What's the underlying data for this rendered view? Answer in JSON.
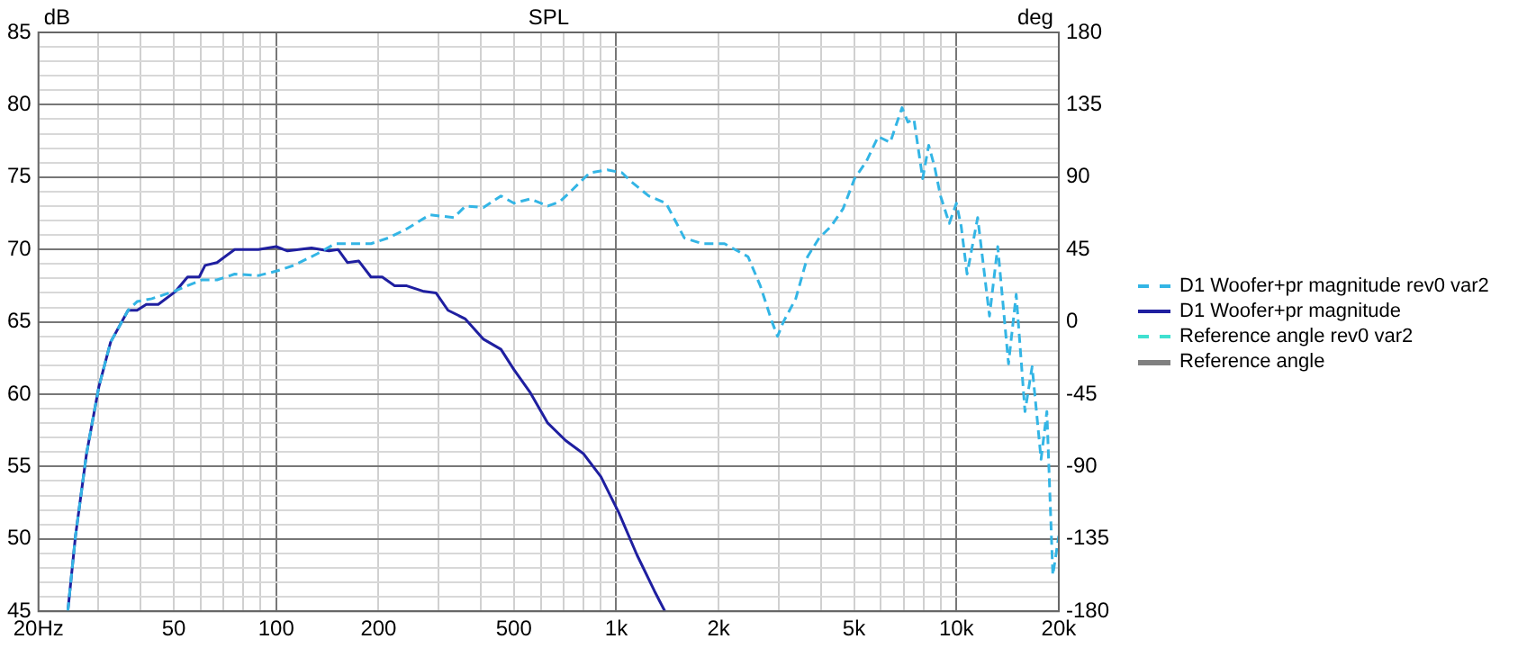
{
  "chart_data": {
    "type": "line",
    "title": "SPL",
    "ylabel": "dB",
    "y2label": "deg",
    "log": "x",
    "grid": true,
    "legend": "right",
    "xlim": [
      20,
      20000
    ],
    "xticks": [
      {
        "value": 20,
        "label": "20Hz"
      },
      {
        "value": 30,
        "label": null
      },
      {
        "value": 40,
        "label": null
      },
      50,
      {
        "value": 60,
        "label": null
      },
      {
        "value": 70,
        "label": null
      },
      {
        "value": 80,
        "label": null
      },
      {
        "value": 90,
        "label": null
      },
      100,
      200,
      {
        "value": 300,
        "label": null
      },
      {
        "value": 400,
        "label": null
      },
      500,
      {
        "value": 600,
        "label": null
      },
      {
        "value": 700,
        "label": null
      },
      {
        "value": 800,
        "label": null
      },
      {
        "value": 900,
        "label": null
      },
      {
        "value": 1000,
        "label": "1k"
      },
      {
        "value": 2000,
        "label": "2k"
      },
      {
        "value": 3000,
        "label": null
      },
      {
        "value": 4000,
        "label": null
      },
      {
        "value": 5000,
        "label": "5k"
      },
      {
        "value": 6000,
        "label": null
      },
      {
        "value": 7000,
        "label": null
      },
      {
        "value": 8000,
        "label": null
      },
      {
        "value": 9000,
        "label": null
      },
      {
        "value": 10000,
        "label": "10k"
      },
      {
        "value": 20000,
        "label": "20k"
      }
    ],
    "ylim": [
      45,
      85
    ],
    "yticks": [
      45,
      {
        "value": 46,
        "label": null
      },
      {
        "value": 47,
        "label": null
      },
      {
        "value": 48,
        "label": null
      },
      {
        "value": 49,
        "label": null
      },
      50,
      {
        "value": 51,
        "label": null
      },
      {
        "value": 52,
        "label": null
      },
      {
        "value": 53,
        "label": null
      },
      {
        "value": 54,
        "label": null
      },
      55,
      {
        "value": 56,
        "label": null
      },
      {
        "value": 57,
        "label": null
      },
      {
        "value": 58,
        "label": null
      },
      {
        "value": 59,
        "label": null
      },
      60,
      {
        "value": 61,
        "label": null
      },
      {
        "value": 62,
        "label": null
      },
      {
        "value": 63,
        "label": null
      },
      {
        "value": 64,
        "label": null
      },
      65,
      {
        "value": 66,
        "label": null
      },
      {
        "value": 67,
        "label": null
      },
      {
        "value": 68,
        "label": null
      },
      {
        "value": 69,
        "label": null
      },
      70,
      {
        "value": 71,
        "label": null
      },
      {
        "value": 72,
        "label": null
      },
      {
        "value": 73,
        "label": null
      },
      {
        "value": 74,
        "label": null
      },
      75,
      {
        "value": 76,
        "label": null
      },
      {
        "value": 77,
        "label": null
      },
      {
        "value": 78,
        "label": null
      },
      {
        "value": 79,
        "label": null
      },
      80,
      {
        "value": 81,
        "label": null
      },
      {
        "value": 82,
        "label": null
      },
      {
        "value": 83,
        "label": null
      },
      {
        "value": 84,
        "label": null
      },
      85
    ],
    "y2lim": [
      -180,
      180
    ],
    "y2ticks": [
      -180,
      -135,
      -90,
      -45,
      0,
      45,
      90,
      135,
      180
    ],
    "series": [
      {
        "name": "D1 Woofer+pr magnitude rev0 var2",
        "color": "#33b5e5",
        "line_style": "dashed",
        "x": [
          24.4,
          25.7,
          27.7,
          30.1,
          32.6,
          36.7,
          39,
          43.1,
          50,
          54.9,
          60.6,
          67,
          75.5,
          88.7,
          100,
          112.7,
          132,
          149,
          168,
          190,
          214,
          241,
          283,
          333,
          360,
          407,
          458,
          500,
          559,
          629,
          682,
          741,
          835,
          941,
          1040,
          1105,
          1245,
          1400,
          1585,
          1790,
          2080,
          2440,
          2650,
          2870,
          2980,
          3100,
          3370,
          3650,
          3950,
          4280,
          4640,
          5020,
          5440,
          5890,
          6390,
          6920,
          7200,
          7500,
          7960,
          8290,
          8630,
          8980,
          9530,
          10000,
          10330,
          10750,
          11550,
          12510,
          13230,
          14230,
          14990,
          15910,
          16700,
          17740,
          18450,
          19210,
          20000
        ],
        "values": [
          45,
          50.2,
          55.9,
          60.5,
          63.6,
          65.8,
          66.4,
          66.6,
          67.1,
          67.5,
          67.9,
          67.9,
          68.3,
          68.2,
          68.5,
          68.9,
          69.7,
          70.4,
          70.4,
          70.4,
          70.8,
          71.4,
          72.4,
          72.2,
          73,
          72.9,
          73.7,
          73.2,
          73.5,
          73,
          73.3,
          74.1,
          75.3,
          75.5,
          75.3,
          74.7,
          73.7,
          73.2,
          70.8,
          70.4,
          70.4,
          69.5,
          67.5,
          65,
          64,
          65,
          66.6,
          69.5,
          70.8,
          71.6,
          72.8,
          74.9,
          76.1,
          77.8,
          77.4,
          79.8,
          78.8,
          79,
          74.9,
          77.2,
          75.7,
          73.7,
          71.8,
          73.2,
          71.6,
          68.3,
          72.2,
          65.4,
          70.2,
          62.1,
          66.9,
          58.8,
          61.9,
          55.5,
          58.8,
          47.5,
          50.2
        ]
      },
      {
        "name": "D1 Woofer+pr magnitude",
        "color": "#1f1fa0",
        "line_style": "solid",
        "x": [
          24.4,
          25.7,
          27.7,
          30.1,
          32.6,
          36.7,
          39,
          41.5,
          45,
          50.6,
          54.9,
          59.4,
          61.8,
          67,
          75.5,
          88.7,
          100,
          108,
          127,
          143,
          152,
          162,
          175,
          190,
          205,
          223,
          241,
          272,
          295,
          320,
          360,
          407,
          458,
          500,
          559,
          629,
          710,
          800,
          901,
          1018,
          1150,
          1295,
          1390
        ],
        "values": [
          45,
          50.2,
          55.9,
          60.5,
          63.6,
          65.8,
          65.8,
          66.2,
          66.2,
          67.1,
          68.1,
          68.1,
          68.9,
          69.1,
          70,
          70,
          70.2,
          69.9,
          70.1,
          69.9,
          70,
          69.1,
          69.2,
          68.1,
          68.1,
          67.5,
          67.5,
          67.1,
          67,
          65.8,
          65.2,
          63.8,
          63.1,
          61.7,
          60.1,
          58,
          56.8,
          55.9,
          54.3,
          51.8,
          48.9,
          46.4,
          45
        ]
      },
      {
        "name": "Reference angle rev0 var2",
        "color": "#40e0d0",
        "line_style": "dashed",
        "axis": "y2"
      },
      {
        "name": "Reference angle",
        "color": "#808080",
        "line_style": "solid",
        "axis": "y2"
      }
    ]
  }
}
